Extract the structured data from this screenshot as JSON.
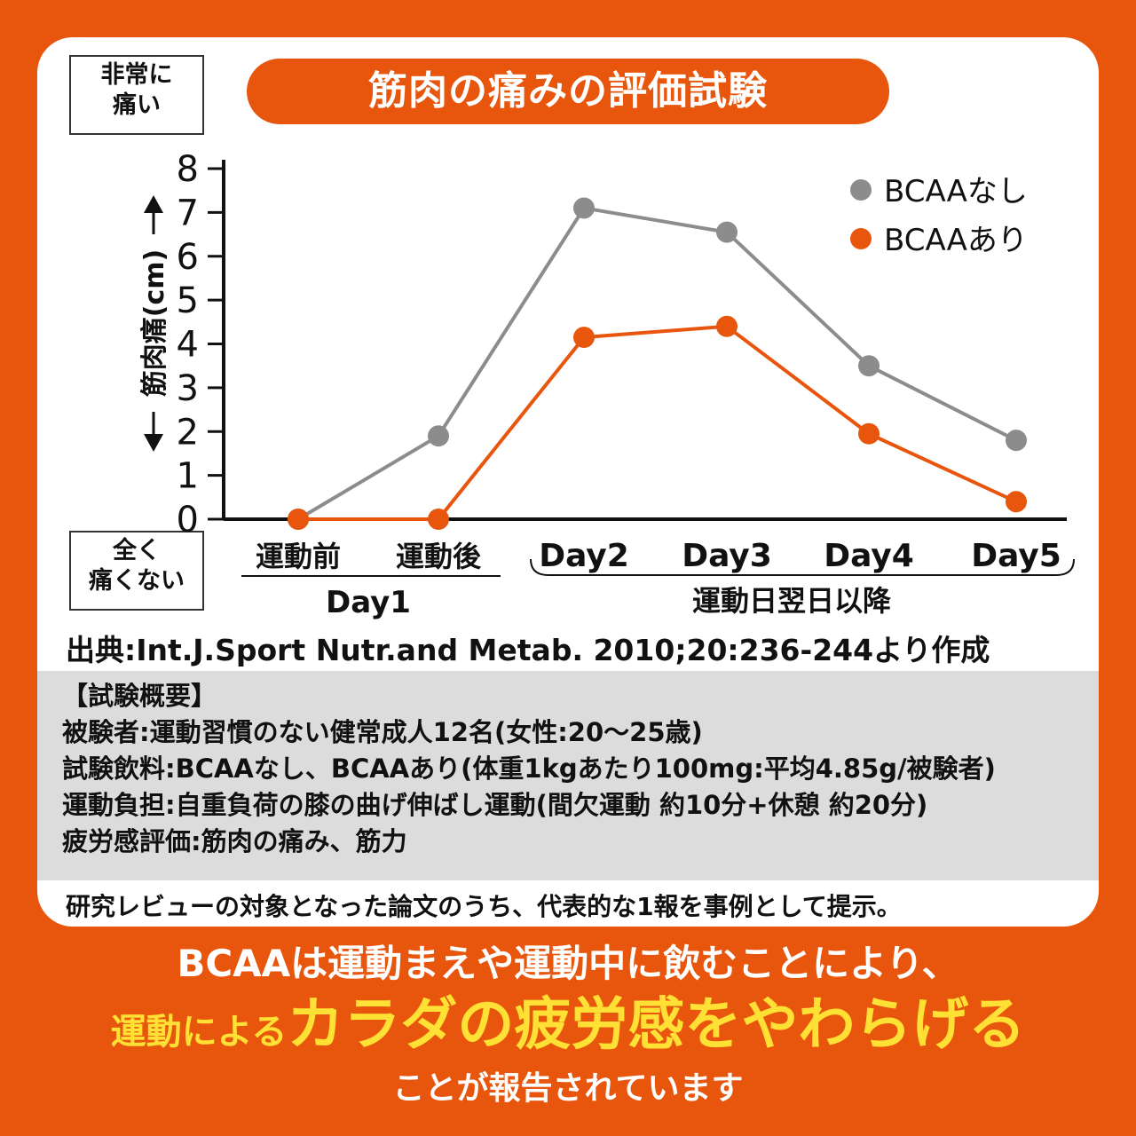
{
  "title": "筋肉の痛みの評価試験",
  "label_top": "非常に\n痛い",
  "label_bottom": "全く\n痛くない",
  "chart_data": {
    "type": "line",
    "ylabel": "筋肉痛(cm)",
    "ylim": [
      0,
      8
    ],
    "yticks": [
      "0",
      "1",
      "2",
      "3",
      "4",
      "5",
      "6",
      "7",
      "8"
    ],
    "categories": [
      "運動前",
      "運動後",
      "Day2",
      "Day3",
      "Day4",
      "Day5"
    ],
    "group_labels": [
      "Day1",
      "運動日翌日以降"
    ],
    "legend_position": "top-right",
    "grid": false,
    "series": [
      {
        "name": "BCAAなし",
        "color": "#8c8c8c",
        "values": [
          0,
          1.9,
          7.1,
          6.55,
          3.5,
          1.8
        ]
      },
      {
        "name": "BCAAあり",
        "color": "#e8560d",
        "values": [
          0,
          0,
          4.15,
          4.4,
          1.95,
          0.4
        ]
      }
    ]
  },
  "source": "出典:Int.J.Sport Nutr.and Metab. 2010;20:236-244より作成",
  "summary": {
    "heading": "【試験概要】",
    "lines": [
      "被験者:運動習慣のない健常成人12名(女性:20〜25歳)",
      "試験飲料:BCAAなし、BCAAあり(体重1kgあたり100mg:平均4.85g/被験者)",
      "運動負担:自重負荷の膝の曲げ伸ばし運動(間欠運動 約10分+休憩 約20分)",
      "疲労感評価:筋肉の痛み、筋力"
    ]
  },
  "note": "研究レビューの対象となった論文のうち、代表的な1報を事例として提示。",
  "bottom": {
    "line1": "BCAAは運動まえや運動中に飲むことにより、",
    "line2_small": "運動による",
    "line2_big": "カラダの疲労感をやわらげる",
    "line3": "ことが報告されています"
  }
}
